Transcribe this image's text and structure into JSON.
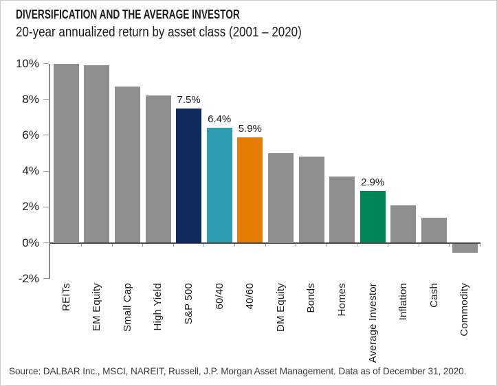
{
  "chart_data": {
    "type": "bar",
    "title": "DIVERSIFICATION AND THE AVERAGE INVESTOR",
    "subtitle": "20-year annualized return by asset class (2001 – 2020)",
    "source": "Source: DALBAR Inc., MSCI, NAREIT, Russell, J.P. Morgan Asset Management. Data as of December 31, 2020.",
    "categories": [
      "REITs",
      "EM Equity",
      "Small Cap",
      "High Yield",
      "S&P 500",
      "60/40",
      "40/60",
      "DM Equity",
      "Bonds",
      "Homes",
      "Average Investor",
      "Inflation",
      "Cash",
      "Commodity"
    ],
    "values": [
      10.0,
      9.9,
      8.7,
      8.2,
      7.5,
      6.4,
      5.9,
      5.0,
      4.8,
      3.7,
      2.9,
      2.1,
      1.4,
      -0.5
    ],
    "data_labels": [
      "",
      "",
      "",
      "",
      "7.5%",
      "6.4%",
      "5.9%",
      "",
      "",
      "",
      "2.9%",
      "",
      "",
      ""
    ],
    "bar_colors": [
      "#8F8F8F",
      "#8F8F8F",
      "#8F8F8F",
      "#8F8F8F",
      "#0F2B5E",
      "#2E9DB4",
      "#E57D04",
      "#8F8F8F",
      "#8F8F8F",
      "#8F8F8F",
      "#008558",
      "#8F8F8F",
      "#8F8F8F",
      "#8F8F8F"
    ],
    "default_bar_color": "#8F8F8F",
    "highlight_colors": {
      "sp500_navy": "#0F2B5E",
      "60_40_teal": "#2E9DB4",
      "40_60_orange": "#E57D04",
      "average_investor_green": "#008558"
    },
    "y_tick_labels": [
      "10%",
      "8%",
      "6%",
      "4%",
      "2%",
      "0%",
      "-2%"
    ],
    "y_tick_values": [
      10,
      8,
      6,
      4,
      2,
      0,
      -2
    ],
    "ylim": [
      -2,
      10
    ],
    "xlabel": "",
    "ylabel": "",
    "grid": false,
    "legend": false
  }
}
